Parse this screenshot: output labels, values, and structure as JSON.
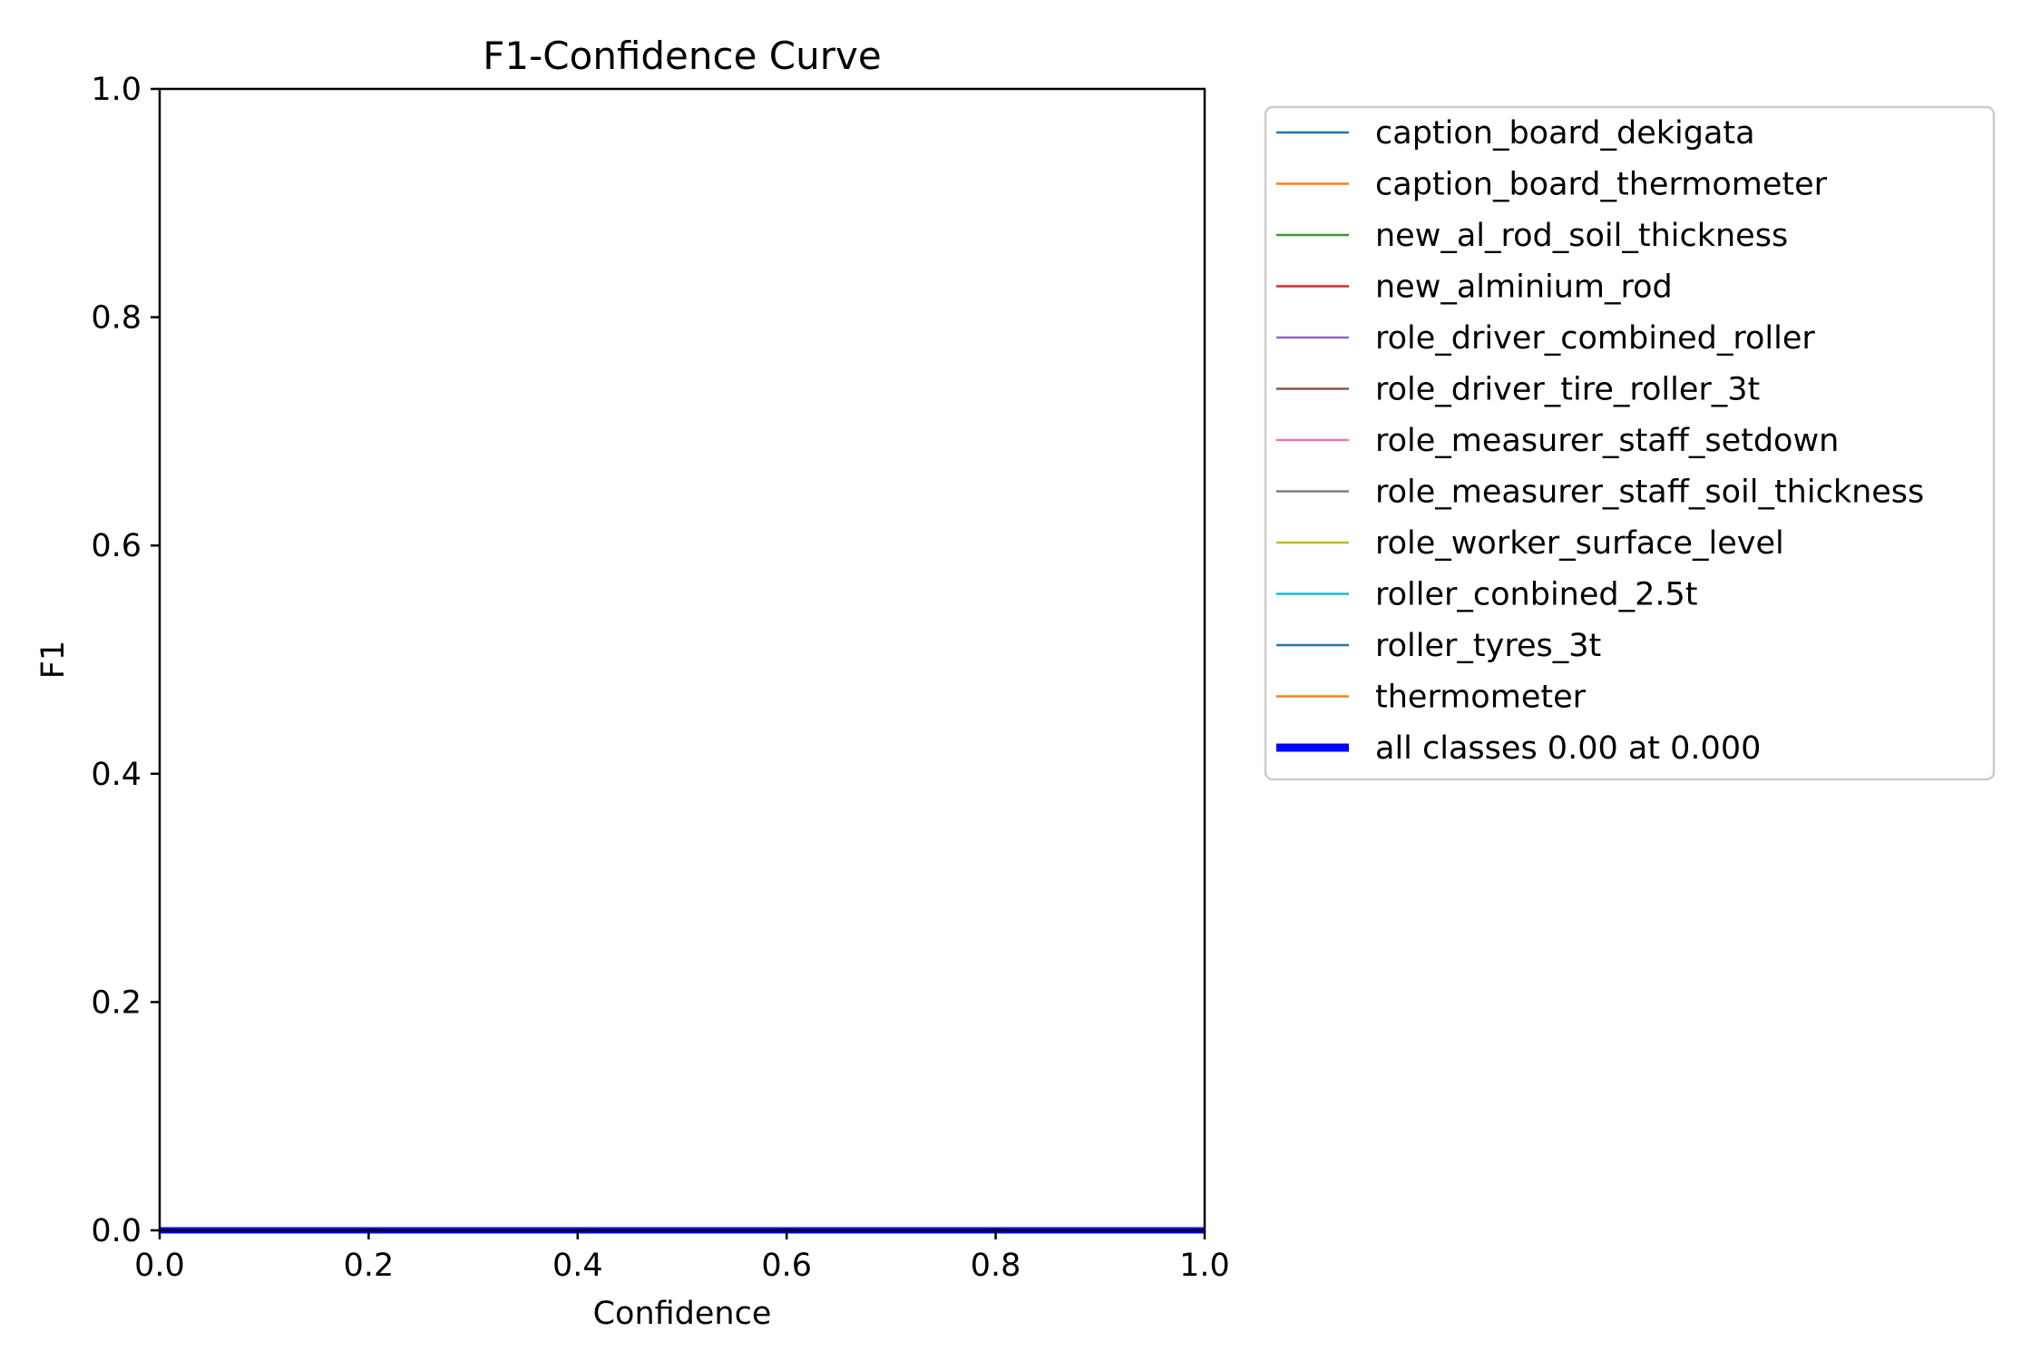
{
  "chart_data": {
    "type": "line",
    "title": "F1-Confidence Curve",
    "xlabel": "Confidence",
    "ylabel": "F1",
    "xlim": [
      0.0,
      1.0
    ],
    "ylim": [
      0.0,
      1.0
    ],
    "x_ticks": [
      0.0,
      0.2,
      0.4,
      0.6,
      0.8,
      1.0
    ],
    "y_ticks": [
      0.0,
      0.2,
      0.4,
      0.6,
      0.8,
      1.0
    ],
    "x_tick_labels": [
      "0.0",
      "0.2",
      "0.4",
      "0.6",
      "0.8",
      "1.0"
    ],
    "y_tick_labels": [
      "0.0",
      "0.2",
      "0.4",
      "0.6",
      "0.8",
      "1.0"
    ],
    "grid": false,
    "legend_placement": "outside-right-top",
    "series": [
      {
        "name": "caption_board_dekigata",
        "color": "#1f77b4",
        "x": [
          0.0,
          1.0
        ],
        "y": [
          0.0,
          0.0
        ]
      },
      {
        "name": "caption_board_thermometer",
        "color": "#ff7f0e",
        "x": [
          0.0,
          1.0
        ],
        "y": [
          0.0,
          0.0
        ]
      },
      {
        "name": "new_al_rod_soil_thickness",
        "color": "#2ca02c",
        "x": [
          0.0,
          1.0
        ],
        "y": [
          0.0,
          0.0
        ]
      },
      {
        "name": "new_alminium_rod",
        "color": "#d62728",
        "x": [
          0.0,
          1.0
        ],
        "y": [
          0.0,
          0.0
        ]
      },
      {
        "name": "role_driver_combined_roller",
        "color": "#9467bd",
        "x": [
          0.0,
          1.0
        ],
        "y": [
          0.0,
          0.0
        ]
      },
      {
        "name": "role_driver_tire_roller_3t",
        "color": "#8c564b",
        "x": [
          0.0,
          1.0
        ],
        "y": [
          0.0,
          0.0
        ]
      },
      {
        "name": "role_measurer_staff_setdown",
        "color": "#e377c2",
        "x": [
          0.0,
          1.0
        ],
        "y": [
          0.0,
          0.0
        ]
      },
      {
        "name": "role_measurer_staff_soil_thickness",
        "color": "#7f7f7f",
        "x": [
          0.0,
          1.0
        ],
        "y": [
          0.0,
          0.0
        ]
      },
      {
        "name": "role_worker_surface_level",
        "color": "#bcbd22",
        "x": [
          0.0,
          1.0
        ],
        "y": [
          0.0,
          0.0
        ]
      },
      {
        "name": "roller_conbined_2.5t",
        "color": "#17becf",
        "x": [
          0.0,
          1.0
        ],
        "y": [
          0.0,
          0.0
        ]
      },
      {
        "name": "roller_tyres_3t",
        "color": "#1f77b4",
        "x": [
          0.0,
          1.0
        ],
        "y": [
          0.0,
          0.0
        ]
      },
      {
        "name": "thermometer",
        "color": "#ff7f0e",
        "x": [
          0.0,
          1.0
        ],
        "y": [
          0.0,
          0.0
        ]
      },
      {
        "name": "all classes 0.00 at 0.000",
        "color": "#0000ff",
        "x": [
          0.0,
          1.0
        ],
        "y": [
          0.0,
          0.0
        ],
        "emphasis": true
      }
    ]
  }
}
